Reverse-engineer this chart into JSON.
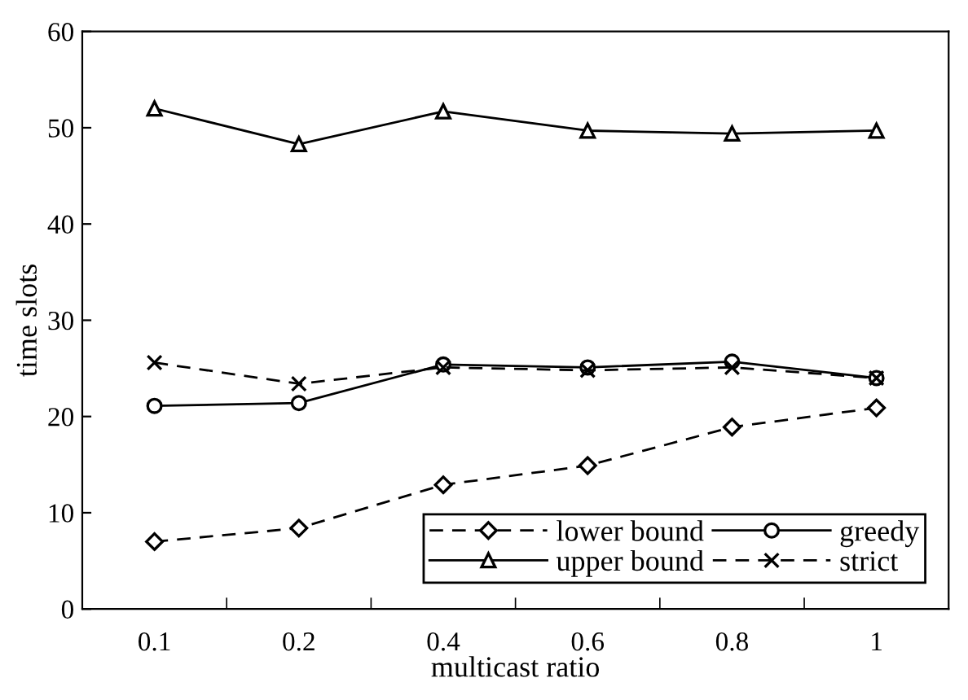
{
  "chart_data": {
    "type": "line",
    "xlabel": "multicast ratio",
    "ylabel": "time slots",
    "categories": [
      "0.1",
      "0.2",
      "0.4",
      "0.6",
      "0.8",
      "1"
    ],
    "ylim": [
      0,
      60
    ],
    "yticks": [
      0,
      10,
      20,
      30,
      40,
      50,
      60
    ],
    "grid": false,
    "legend": "bottom right",
    "series": [
      {
        "name": "lower bound",
        "color": "#000000",
        "marker": "diamond",
        "line_style": "dashed",
        "values": [
          7,
          8.4,
          12.9,
          14.9,
          18.9,
          20.9
        ]
      },
      {
        "name": "upper bound",
        "color": "#000000",
        "marker": "triangle",
        "line_style": "solid",
        "values": [
          52,
          48.3,
          51.7,
          49.7,
          49.4,
          49.7
        ]
      },
      {
        "name": "greedy",
        "color": "#000000",
        "marker": "circle",
        "line_style": "solid",
        "values": [
          21.1,
          21.4,
          25.4,
          25.1,
          25.7,
          24
        ]
      },
      {
        "name": "strict",
        "color": "#000000",
        "marker": "cross",
        "line_style": "dashed",
        "values": [
          25.6,
          23.4,
          25.1,
          24.8,
          25.1,
          24
        ]
      }
    ]
  }
}
